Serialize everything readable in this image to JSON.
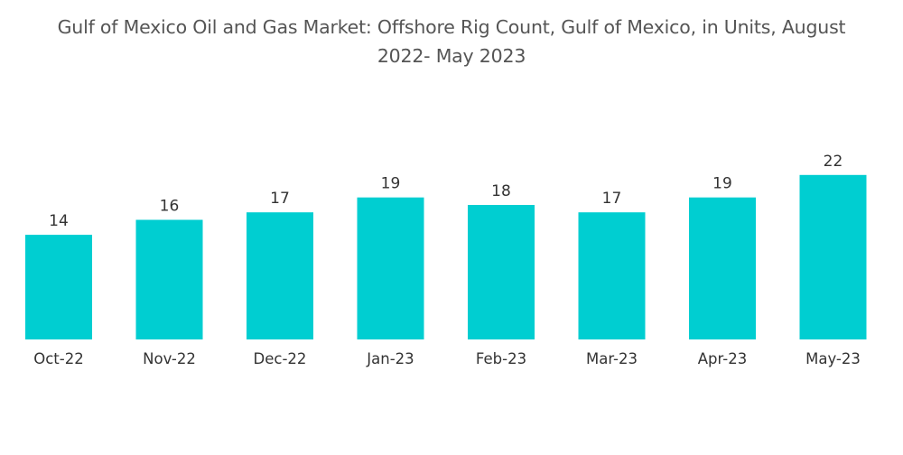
{
  "chart_data": {
    "type": "bar",
    "title": "Gulf of Mexico Oil and Gas Market: Offshore Rig Count, Gulf of Mexico, in Units, August 2022- May 2023",
    "title_lines": [
      "Gulf of Mexico Oil and Gas Market: Offshore Rig Count, Gulf of Mexico, in Units, August",
      "2022- May 2023"
    ],
    "categories": [
      "Oct-22",
      "Nov-22",
      "Dec-22",
      "Jan-23",
      "Feb-23",
      "Mar-23",
      "Apr-23",
      "May-23"
    ],
    "values": [
      14,
      16,
      17,
      19,
      18,
      17,
      19,
      22
    ],
    "xlabel": "",
    "ylabel": "",
    "ylim": [
      0,
      22
    ],
    "grid": false,
    "legend": "none",
    "data_labels": true,
    "bar_color": "#00CED1",
    "text_color": "#333333",
    "title_color": "#555555"
  }
}
